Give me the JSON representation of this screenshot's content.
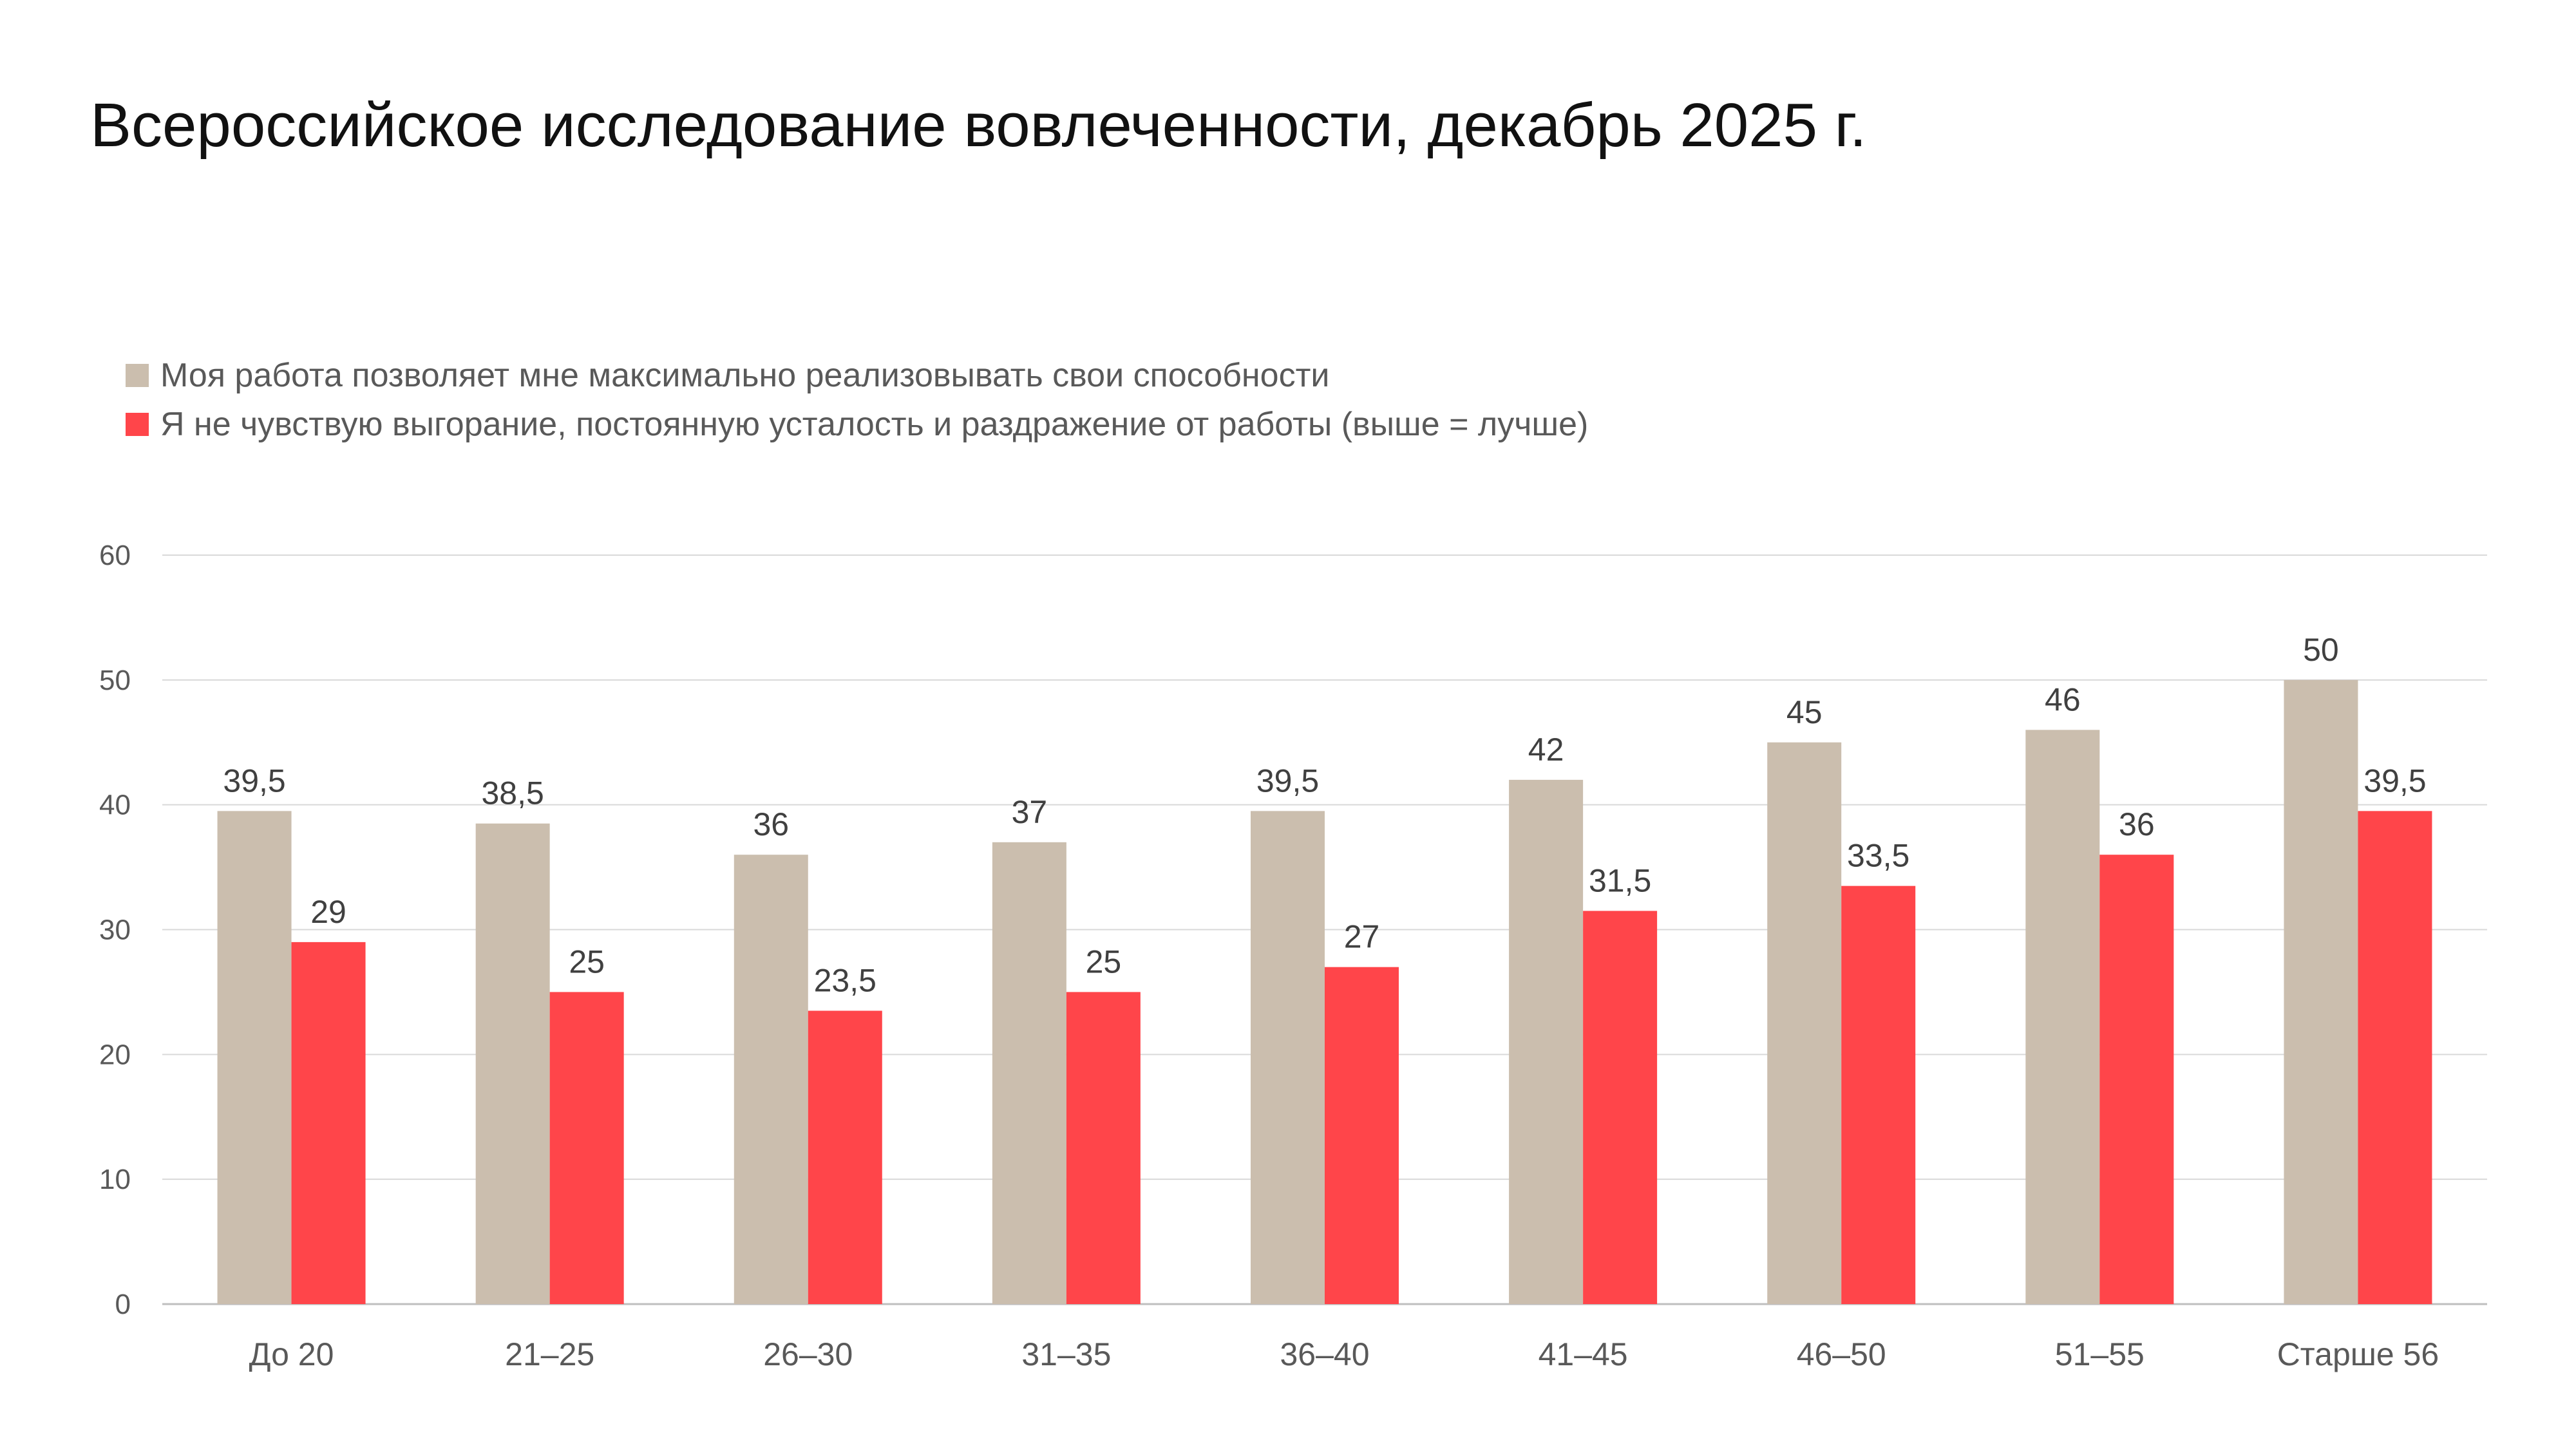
{
  "title": "Всероссийское исследование вовлеченности, декабрь 2025 г.",
  "legend": [
    {
      "label": "Моя работа позволяет мне максимально реализовывать свои способности",
      "color": "#CBBEAE"
    },
    {
      "label": "Я не чувствую выгорание, постоянную усталость и раздражение от работы (выше = лучше)",
      "color": "#FF454A"
    }
  ],
  "chart_data": {
    "type": "bar",
    "title": "Всероссийское исследование вовлеченности, декабрь 2025 г.",
    "categories": [
      "До 20",
      "21–25",
      "26–30",
      "31–35",
      "36–40",
      "41–45",
      "46–50",
      "51–55",
      "Старше 56"
    ],
    "series": [
      {
        "name": "Моя работа позволяет мне максимально реализовывать свои способности",
        "color": "#CBBEAE",
        "values": [
          39.5,
          38.5,
          36,
          37,
          39.5,
          42,
          45,
          46,
          50
        ],
        "labels": [
          "39,5",
          "38,5",
          "36",
          "37",
          "39,5",
          "42",
          "45",
          "46",
          "50"
        ]
      },
      {
        "name": "Я не чувствую выгорание, постоянную усталость и раздражение от работы (выше = лучше)",
        "color": "#FF454A",
        "values": [
          29,
          25,
          23.5,
          25,
          27,
          31.5,
          33.5,
          36,
          39.5
        ],
        "labels": [
          "29",
          "25",
          "23,5",
          "25",
          "27",
          "31,5",
          "33,5",
          "36",
          "39,5"
        ]
      }
    ],
    "ylim": [
      0,
      60
    ],
    "yticks": [
      0,
      10,
      20,
      30,
      40,
      50,
      60
    ],
    "xlabel": "",
    "ylabel": "",
    "grid": true,
    "legend_position": "top-left"
  }
}
